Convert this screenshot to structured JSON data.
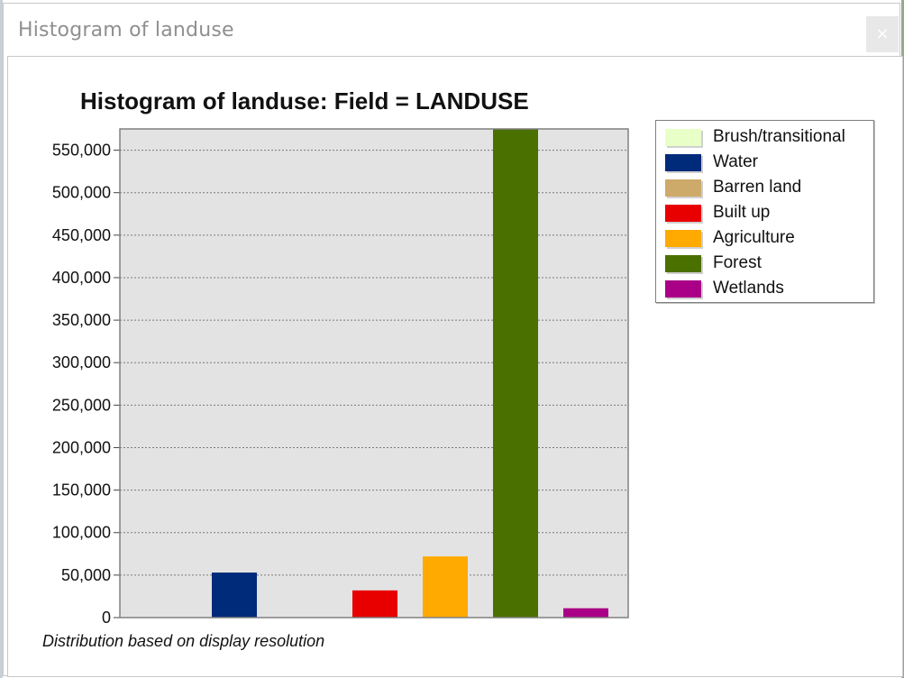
{
  "window": {
    "title": "Histogram of landuse",
    "close_label": "×"
  },
  "chart_data": {
    "type": "bar",
    "title": "Histogram of landuse: Field = LANDUSE",
    "xlabel": "",
    "ylabel": "",
    "ylim": [
      0,
      575000
    ],
    "y_ticks": [
      0,
      50000,
      100000,
      150000,
      200000,
      250000,
      300000,
      350000,
      400000,
      450000,
      500000,
      550000
    ],
    "y_tick_labels": [
      "0",
      "50,000",
      "100,000",
      "150,000",
      "200,000",
      "250,000",
      "300,000",
      "350,000",
      "400,000",
      "450,000",
      "500,000",
      "550,000"
    ],
    "grid": true,
    "plot_background": "#e3e3e3",
    "legend_position": "right",
    "categories": [
      "Brush/transitional",
      "Water",
      "Barren land",
      "Built up",
      "Agriculture",
      "Forest",
      "Wetlands"
    ],
    "values": [
      0,
      53000,
      0,
      32000,
      72000,
      575000,
      11000
    ],
    "colors": [
      "#e8ffc8",
      "#002a7a",
      "#ceaa6a",
      "#e80000",
      "#ffaa00",
      "#4a7000",
      "#aa0088"
    ],
    "footnote": "Distribution based on display resolution"
  }
}
